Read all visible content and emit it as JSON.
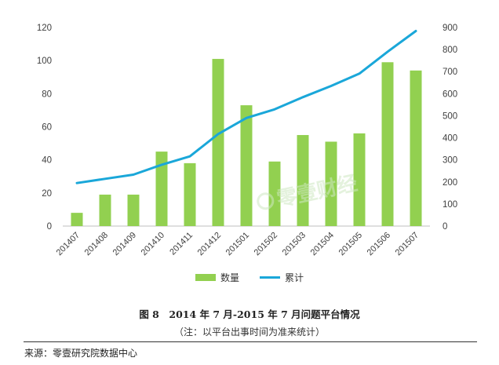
{
  "chart_data": {
    "type": "bar+line",
    "categories": [
      "201407",
      "201408",
      "201409",
      "201410",
      "201411",
      "201412",
      "201501",
      "201502",
      "201503",
      "201504",
      "201505",
      "201506",
      "201507"
    ],
    "series": [
      {
        "name": "数量",
        "type": "bar",
        "axis": "left",
        "color": "#92d050",
        "values": [
          8,
          19,
          19,
          45,
          38,
          101,
          73,
          39,
          55,
          51,
          56,
          99,
          94
        ]
      },
      {
        "name": "累计",
        "type": "line",
        "axis": "right",
        "color": "#1aa7d9",
        "values": [
          195,
          214,
          233,
          278,
          316,
          417,
          490,
          529,
          584,
          635,
          691,
          790,
          884
        ]
      }
    ],
    "left_axis": {
      "min": 0,
      "max": 120,
      "step": 20,
      "ticks": [
        "0",
        "20",
        "40",
        "60",
        "80",
        "100",
        "120"
      ]
    },
    "right_axis": {
      "min": 0,
      "max": 900,
      "step": 100,
      "ticks": [
        "0",
        "100",
        "200",
        "300",
        "400",
        "500",
        "600",
        "700",
        "800",
        "900"
      ]
    },
    "gridlines": false,
    "legend_position": "bottom-center"
  },
  "legend": {
    "bar_label": "数量",
    "line_label": "累计"
  },
  "caption": {
    "title": "图 8　2014 年 7 月-2015 年 7 月问题平台情况",
    "note": "（注：以平台出事时间为准来统计）"
  },
  "source": "来源：零壹研究院数据中心",
  "watermark": "零壹财经",
  "colors": {
    "bar": "#92d050",
    "line": "#1aa7d9",
    "axis": "#bfbfbf"
  }
}
